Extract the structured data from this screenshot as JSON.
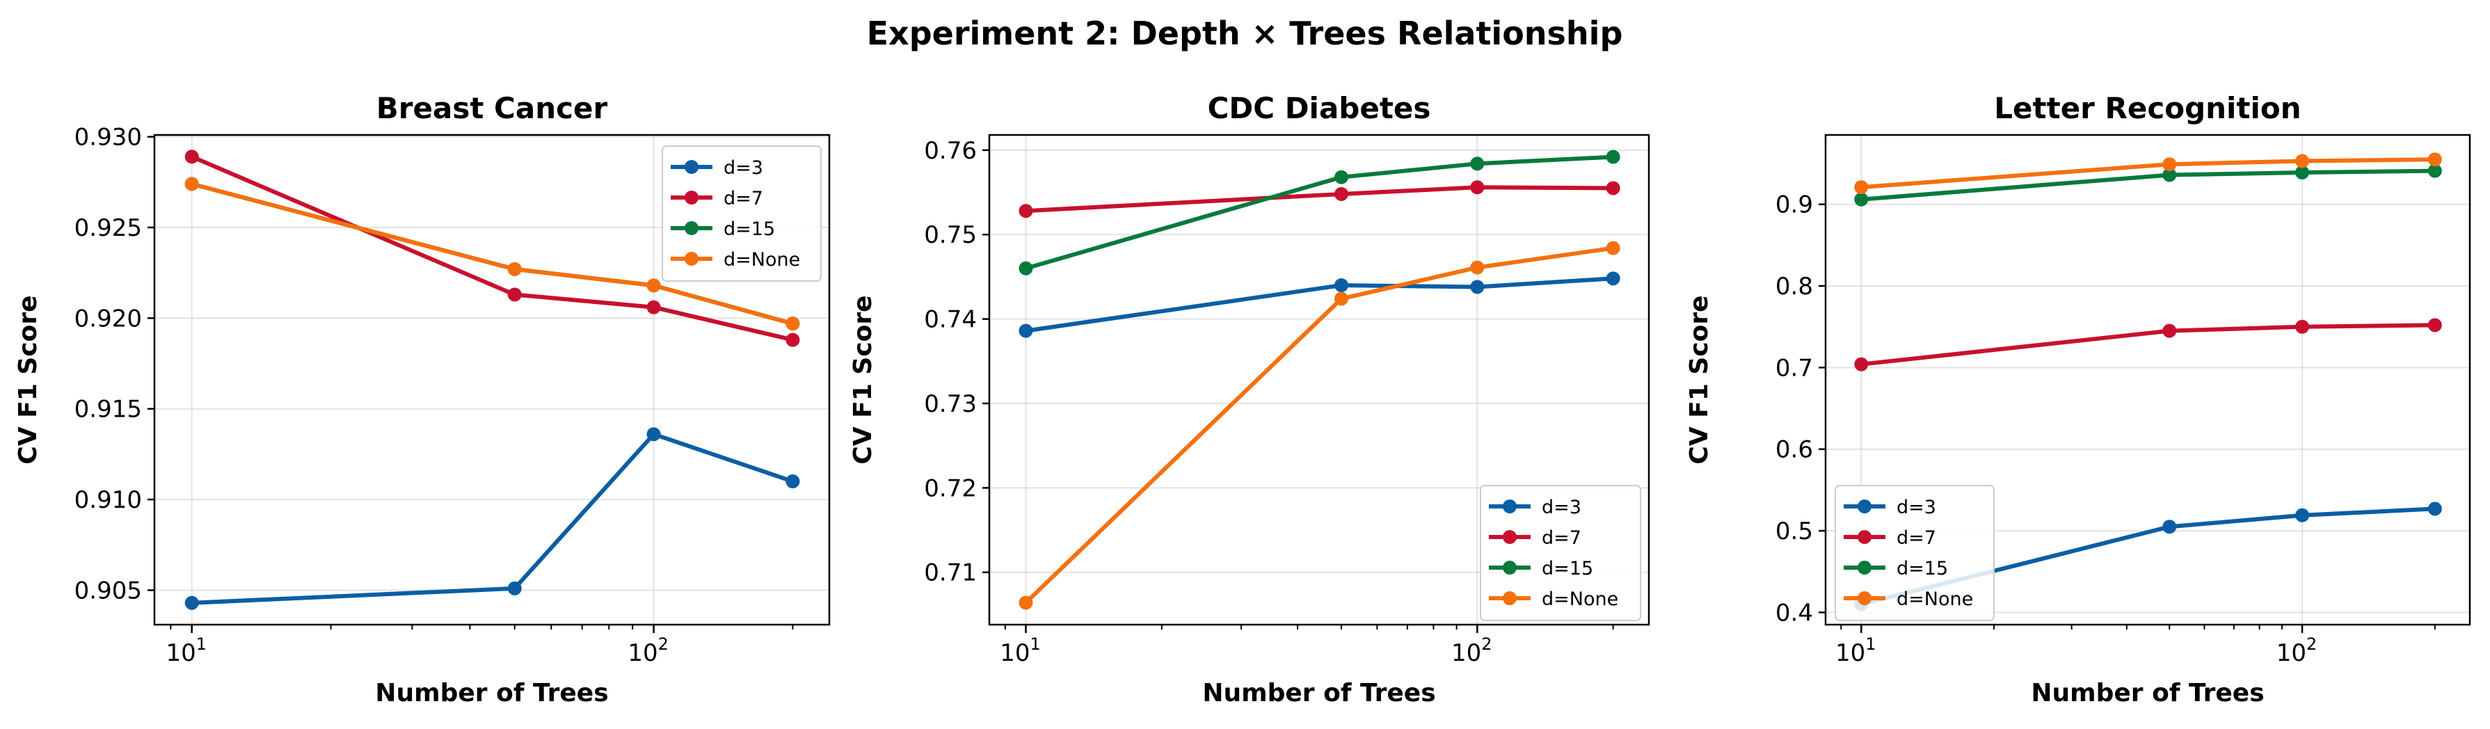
{
  "title": "Experiment 2: Depth × Trees Relationship",
  "series_colors": {
    "d=3": "#0b5ea3",
    "d=7": "#c8102e",
    "d=15": "#067a3b",
    "d=None": "#f5700d"
  },
  "chart_data": [
    {
      "type": "line",
      "title": "Breast Cancer",
      "xlabel": "Number of Trees",
      "ylabel": "CV F1 Score",
      "xscale": "log",
      "xlim": [
        8.3,
        240
      ],
      "ylim": [
        0.9031,
        0.9301
      ],
      "yticks": [
        0.905,
        0.91,
        0.915,
        0.92,
        0.925,
        0.93
      ],
      "ytick_decimals": 3,
      "grid": true,
      "legend_position": "upper-right",
      "x": [
        10,
        50,
        100,
        200
      ],
      "series": [
        {
          "name": "d=3",
          "values": [
            0.9043,
            0.9051,
            0.9136,
            0.911
          ]
        },
        {
          "name": "d=7",
          "values": [
            0.9289,
            0.9213,
            0.9206,
            0.9188
          ]
        },
        {
          "name": "d=15",
          "values": [
            0.9274,
            0.9227,
            0.9218,
            0.9197
          ]
        },
        {
          "name": "d=None",
          "values": [
            0.9274,
            0.9227,
            0.9218,
            0.9197
          ]
        }
      ]
    },
    {
      "type": "line",
      "title": "CDC Diabetes",
      "xlabel": "Number of Trees",
      "ylabel": "CV F1 Score",
      "xscale": "log",
      "xlim": [
        8.3,
        240
      ],
      "ylim": [
        0.7038,
        0.7618
      ],
      "yticks": [
        0.71,
        0.72,
        0.73,
        0.74,
        0.75,
        0.76
      ],
      "ytick_decimals": 2,
      "grid": true,
      "legend_position": "lower-right",
      "x": [
        10,
        50,
        100,
        200
      ],
      "series": [
        {
          "name": "d=3",
          "values": [
            0.7386,
            0.744,
            0.7438,
            0.7448
          ]
        },
        {
          "name": "d=7",
          "values": [
            0.7528,
            0.7548,
            0.7556,
            0.7555
          ]
        },
        {
          "name": "d=15",
          "values": [
            0.746,
            0.7568,
            0.7584,
            0.7592
          ]
        },
        {
          "name": "d=None",
          "values": [
            0.7064,
            0.7424,
            0.7461,
            0.7484
          ]
        }
      ]
    },
    {
      "type": "line",
      "title": "Letter Recognition",
      "xlabel": "Number of Trees",
      "ylabel": "CV F1 Score",
      "xscale": "log",
      "xlim": [
        8.3,
        240
      ],
      "ylim": [
        0.385,
        0.985
      ],
      "yticks": [
        0.4,
        0.5,
        0.6,
        0.7,
        0.8,
        0.9
      ],
      "ytick_decimals": 1,
      "grid": true,
      "legend_position": "lower-left",
      "x": [
        10,
        50,
        100,
        200
      ],
      "series": [
        {
          "name": "d=3",
          "values": [
            0.41,
            0.505,
            0.519,
            0.527
          ]
        },
        {
          "name": "d=7",
          "values": [
            0.704,
            0.745,
            0.75,
            0.752
          ]
        },
        {
          "name": "d=15",
          "values": [
            0.906,
            0.936,
            0.939,
            0.941
          ]
        },
        {
          "name": "d=None",
          "values": [
            0.921,
            0.949,
            0.953,
            0.955
          ]
        }
      ]
    }
  ]
}
